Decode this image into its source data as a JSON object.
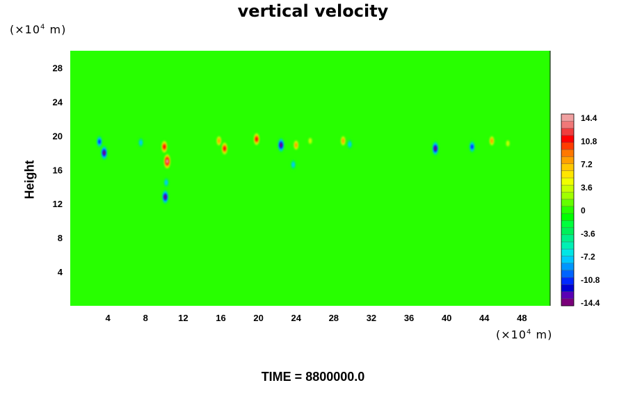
{
  "chart_data": {
    "type": "heatmap",
    "title": "vertical velocity",
    "ylabel": "Height",
    "x_unit": "(×10⁴ m)",
    "y_unit": "(×10⁴ m)",
    "x_unit_parts": {
      "prefix": "(×10",
      "exp": "4",
      "suffix": " m)"
    },
    "y_unit_parts": {
      "prefix": "(×10",
      "exp": "4",
      "suffix": " m)"
    },
    "xlim": [
      0,
      51
    ],
    "ylim": [
      0,
      30
    ],
    "x_ticks": [
      "4",
      "8",
      "12",
      "16",
      "20",
      "24",
      "28",
      "32",
      "36",
      "40",
      "44",
      "48"
    ],
    "y_ticks": [
      "4",
      "8",
      "12",
      "16",
      "20",
      "24",
      "28"
    ],
    "colorbar": {
      "min": -14.4,
      "max": 14.4,
      "tick_labels": [
        "14.4",
        "10.8",
        "7.2",
        "3.6",
        "0",
        "-3.6",
        "-7.2",
        "-10.8",
        "-14.4"
      ],
      "colors": [
        "#7a007a",
        "#5a00b4",
        "#0000d2",
        "#0028ff",
        "#0064ff",
        "#0096ff",
        "#00c8ff",
        "#00e6e6",
        "#00f0b4",
        "#00f08c",
        "#00f05a",
        "#00ff3c",
        "#00ff00",
        "#28ff00",
        "#64ff00",
        "#a0ff00",
        "#c8ff00",
        "#f0ff00",
        "#ffe600",
        "#ffc800",
        "#ffa000",
        "#ff7800",
        "#ff3c00",
        "#ff0000",
        "#f03c3c",
        "#f07878",
        "#f0a0a0"
      ]
    },
    "background_value": 0,
    "features": [
      {
        "x": 10.3,
        "y": 17.0,
        "value": 14.4
      },
      {
        "x": 10.0,
        "y": 18.7,
        "value": 10.8
      },
      {
        "x": 10.1,
        "y": 12.8,
        "value": -14.4
      },
      {
        "x": 10.2,
        "y": 14.5,
        "value": -7.2
      },
      {
        "x": 3.6,
        "y": 18.0,
        "value": -14.4
      },
      {
        "x": 3.1,
        "y": 19.3,
        "value": -10.8
      },
      {
        "x": 7.5,
        "y": 19.2,
        "value": -7.2
      },
      {
        "x": 15.8,
        "y": 19.4,
        "value": 7.2
      },
      {
        "x": 16.4,
        "y": 18.5,
        "value": 10.8
      },
      {
        "x": 19.8,
        "y": 19.6,
        "value": 10.8
      },
      {
        "x": 22.4,
        "y": 18.9,
        "value": -14.4
      },
      {
        "x": 24.0,
        "y": 18.9,
        "value": 7.2
      },
      {
        "x": 23.7,
        "y": 16.6,
        "value": -7.2
      },
      {
        "x": 25.5,
        "y": 19.4,
        "value": 3.6
      },
      {
        "x": 29.0,
        "y": 19.4,
        "value": 7.2
      },
      {
        "x": 29.7,
        "y": 19.0,
        "value": -7.2
      },
      {
        "x": 38.8,
        "y": 18.5,
        "value": -14.4
      },
      {
        "x": 42.7,
        "y": 18.7,
        "value": -10.8
      },
      {
        "x": 44.8,
        "y": 19.4,
        "value": 7.2
      },
      {
        "x": 46.5,
        "y": 19.1,
        "value": 3.6
      }
    ]
  },
  "footer": "TIME = 8800000.0"
}
